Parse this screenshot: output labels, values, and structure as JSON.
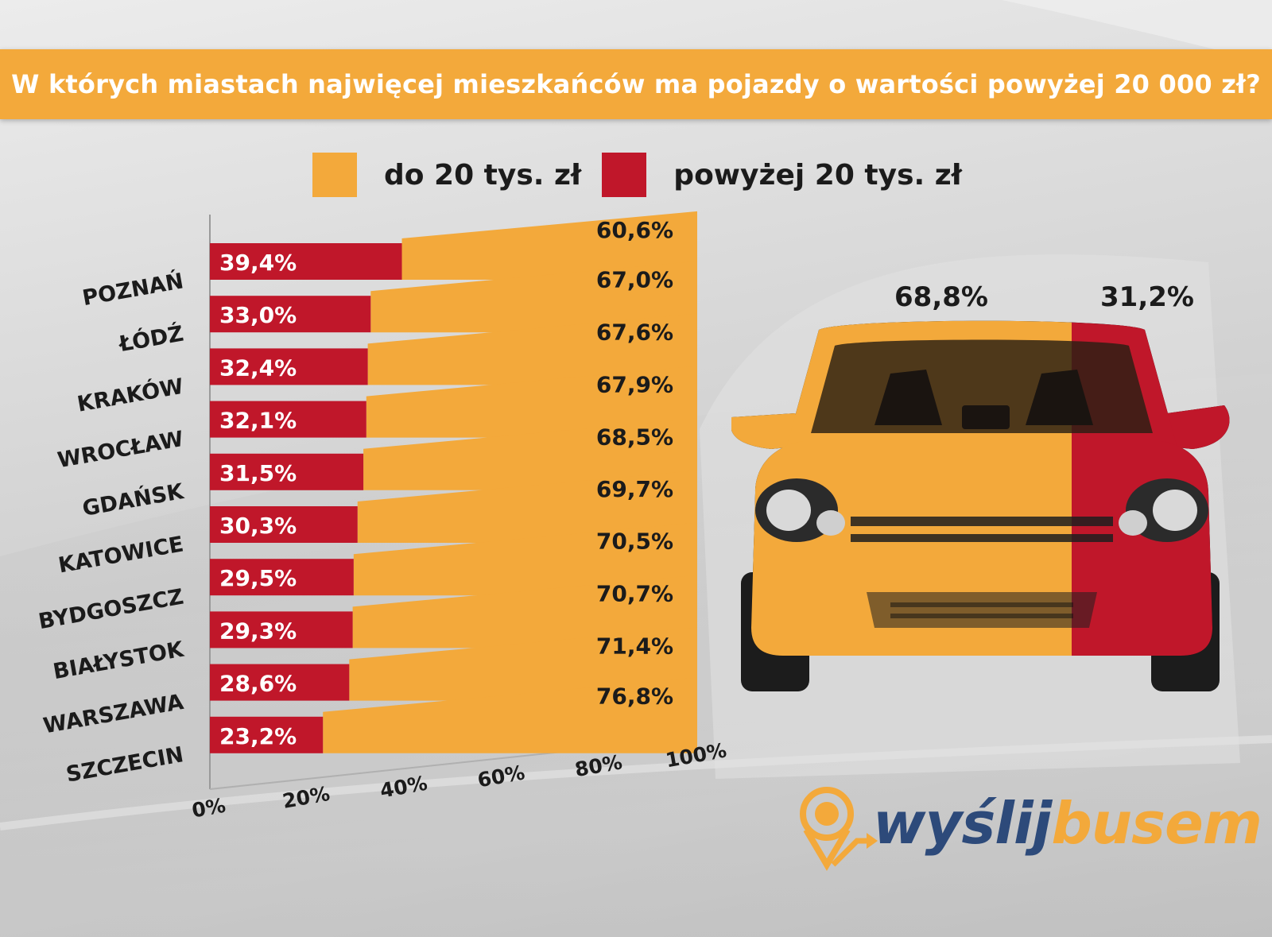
{
  "title": "W których miastach najwięcej mieszkańców ma pojazdy o wartości powyżej 20 000 zł?",
  "colors": {
    "orange": "#f3a93b",
    "red": "#c0172a",
    "text": "#1b1b1b",
    "logo_blue": "#2d4a7a"
  },
  "legend": [
    {
      "label": "do 20 tys. zł",
      "color": "#f3a93b"
    },
    {
      "label": "powyżej 20 tys. zł",
      "color": "#c0172a"
    }
  ],
  "chart_data": {
    "type": "bar",
    "orientation": "horizontal",
    "stacked": true,
    "categories": [
      "POZNAŃ",
      "ŁÓDŹ",
      "KRAKÓW",
      "WROCŁAW",
      "GDAŃSK",
      "KATOWICE",
      "BYDGOSZCZ",
      "BIAŁYSTOK",
      "WARSZAWA",
      "SZCZECIN"
    ],
    "series": [
      {
        "name": "powyżej 20 tys. zł",
        "color": "#c0172a",
        "values": [
          39.4,
          33.0,
          32.4,
          32.1,
          31.5,
          30.3,
          29.5,
          29.3,
          28.6,
          23.2
        ],
        "labels": [
          "39,4%",
          "33,0%",
          "32,4%",
          "32,1%",
          "31,5%",
          "30,3%",
          "29,5%",
          "29,3%",
          "28,6%",
          "23,2%"
        ]
      },
      {
        "name": "do 20 tys. zł",
        "color": "#f3a93b",
        "values": [
          60.6,
          67.0,
          67.6,
          67.9,
          68.5,
          69.7,
          70.5,
          70.7,
          71.4,
          76.8
        ],
        "labels": [
          "60,6%",
          "67,0%",
          "67,6%",
          "67,9%",
          "68,5%",
          "69,7%",
          "70,5%",
          "70,7%",
          "71,4%",
          "76,8%"
        ]
      }
    ],
    "xlim": [
      0,
      100
    ],
    "xticks": [
      "0%",
      "20%",
      "40%",
      "60%",
      "80%",
      "100%"
    ],
    "legend_position": "top"
  },
  "car": {
    "orange_label": "68,8%",
    "red_label": "31,2%",
    "orange_share": 68.8,
    "red_share": 31.2
  },
  "logo": {
    "part1": "wyślij",
    "part2": "busem"
  }
}
